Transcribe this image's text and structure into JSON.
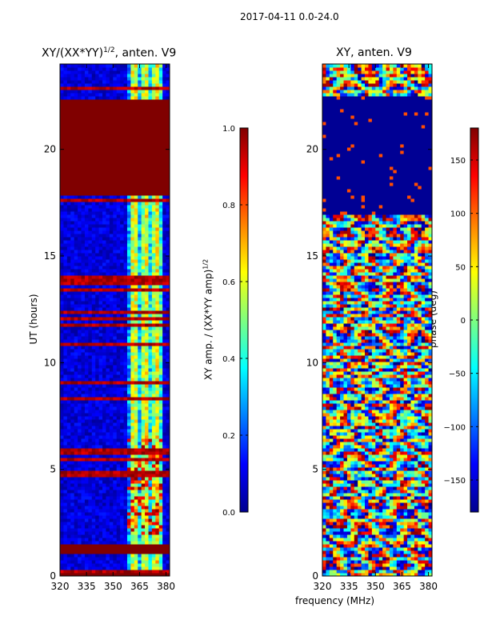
{
  "figure": {
    "suptitle": "2017-04-11 0.0-24.0"
  },
  "chart_data": [
    {
      "type": "heatmap",
      "title": "XY/(XX*YY)^1/2, anten. V9",
      "title_main": "XY/(XX*YY)",
      "title_sup": "1/2",
      "title_tail": ", anten. V9",
      "xlabel": "",
      "ylabel": "UT (hours)",
      "xlim": [
        320,
        382
      ],
      "ylim": [
        0,
        24
      ],
      "x_ticks": [
        320,
        335,
        350,
        365,
        380
      ],
      "y_ticks": [
        0,
        5,
        10,
        15,
        20
      ],
      "x_tick_labels": [
        "320",
        "335",
        "350",
        "365",
        "380"
      ],
      "y_tick_labels": [
        "0",
        "5",
        "10",
        "15",
        "20"
      ],
      "colorbar": {
        "label": "XY amp. / (XX*YY amp)^1/2",
        "label_main": "XY amp. / (XX*YY amp)",
        "label_sup": "1/2",
        "range": [
          0.0,
          1.0
        ],
        "ticks": [
          0.0,
          0.2,
          0.4,
          0.6,
          0.8,
          1.0
        ],
        "tick_labels": [
          "0.0",
          "0.2",
          "0.4",
          "0.6",
          "0.8",
          "1.0"
        ],
        "colormap": "jet"
      },
      "features": {
        "saturated_hour_bands": [
          [
            17.9,
            22.4
          ],
          [
            1.0,
            1.5
          ],
          [
            0.0,
            0.1
          ]
        ],
        "bright_freq_band_mhz": [
          359,
          377
        ]
      }
    },
    {
      "type": "heatmap",
      "title": "XY, anten. V9",
      "xlabel": "frequency (MHz)",
      "ylabel": "",
      "xlim": [
        320,
        382
      ],
      "ylim": [
        0,
        24
      ],
      "x_ticks": [
        320,
        335,
        350,
        365,
        380
      ],
      "y_ticks": [
        0,
        5,
        10,
        15,
        20
      ],
      "x_tick_labels": [
        "320",
        "335",
        "350",
        "365",
        "380"
      ],
      "y_tick_labels": [
        "0",
        "5",
        "10",
        "15",
        "20"
      ],
      "colorbar": {
        "label": "phase (deg)",
        "range": [
          -180,
          180
        ],
        "ticks": [
          -150,
          -100,
          -50,
          0,
          50,
          100,
          150
        ],
        "tick_labels": [
          "−150",
          "−100",
          "−50",
          "0",
          "50",
          "100",
          "150"
        ],
        "colormap": "jet"
      },
      "features": {
        "flagged_hour_bands": [
          [
            17.0,
            22.5
          ]
        ]
      }
    }
  ],
  "colors": {
    "jet_dark_red": "#800000",
    "jet_dark_blue": "#00008f"
  }
}
